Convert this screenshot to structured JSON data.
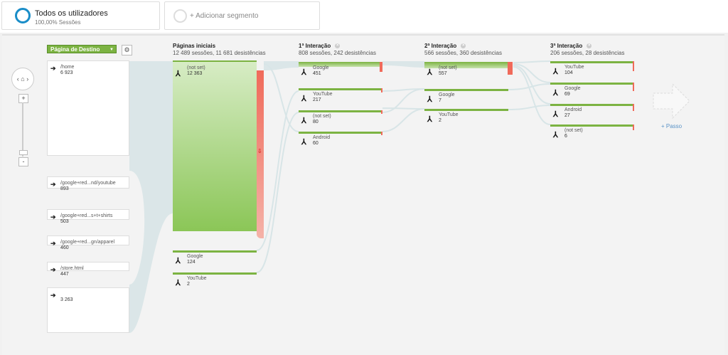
{
  "segments": {
    "active": {
      "title": "Todos os utilizadores",
      "subtitle": "100,00% Sessões"
    },
    "add_label": "+ Adicionar segmento"
  },
  "controls": {
    "dimension_dropdown": "Página de Destino",
    "zoom_in": "+",
    "zoom_out": "-",
    "nav_left": "‹",
    "nav_right": "›"
  },
  "columns": [
    {
      "title": "Páginas iniciais",
      "stats": "12 489 sessões, 11 681 desistências"
    },
    {
      "title": "1ª Interação",
      "stats": "808 sessões, 242 desistências"
    },
    {
      "title": "2ª Interação",
      "stats": "566 sessões, 360 desistências"
    },
    {
      "title": "3ª Interação",
      "stats": "206 sessões, 28 desistências"
    }
  ],
  "sources": [
    {
      "label": "/home",
      "value": "6 923"
    },
    {
      "label": "/google+red...nd/youtube",
      "value": "893"
    },
    {
      "label": "/google+red...s+t+shirts",
      "value": "503"
    },
    {
      "label": "/google+red...gn/apparel",
      "value": "460"
    },
    {
      "label": "/store.html",
      "value": "447"
    },
    {
      "label": "",
      "value": "3 263"
    }
  ],
  "starting_pages": [
    {
      "label": "(not set)",
      "value": "12 363"
    },
    {
      "label": "Google",
      "value": "124"
    },
    {
      "label": "YouTube",
      "value": "2"
    }
  ],
  "interaction1": [
    {
      "label": "Google",
      "value": "451"
    },
    {
      "label": "YouTube",
      "value": "217"
    },
    {
      "label": "(not set)",
      "value": "80"
    },
    {
      "label": "Android",
      "value": "60"
    }
  ],
  "interaction2": [
    {
      "label": "(not set)",
      "value": "557"
    },
    {
      "label": "Google",
      "value": "7"
    },
    {
      "label": "YouTube",
      "value": "2"
    }
  ],
  "interaction3": [
    {
      "label": "YouTube",
      "value": "104"
    },
    {
      "label": "Google",
      "value": "69"
    },
    {
      "label": "Android",
      "value": "27"
    },
    {
      "label": "(not set)",
      "value": "6"
    }
  ],
  "next_step": "+ Passo",
  "colors": {
    "accent": "#1a8dc8",
    "node_green": "#7cb342",
    "dropoff_red": "#f06a5a",
    "flow": "#d5e2e4"
  }
}
